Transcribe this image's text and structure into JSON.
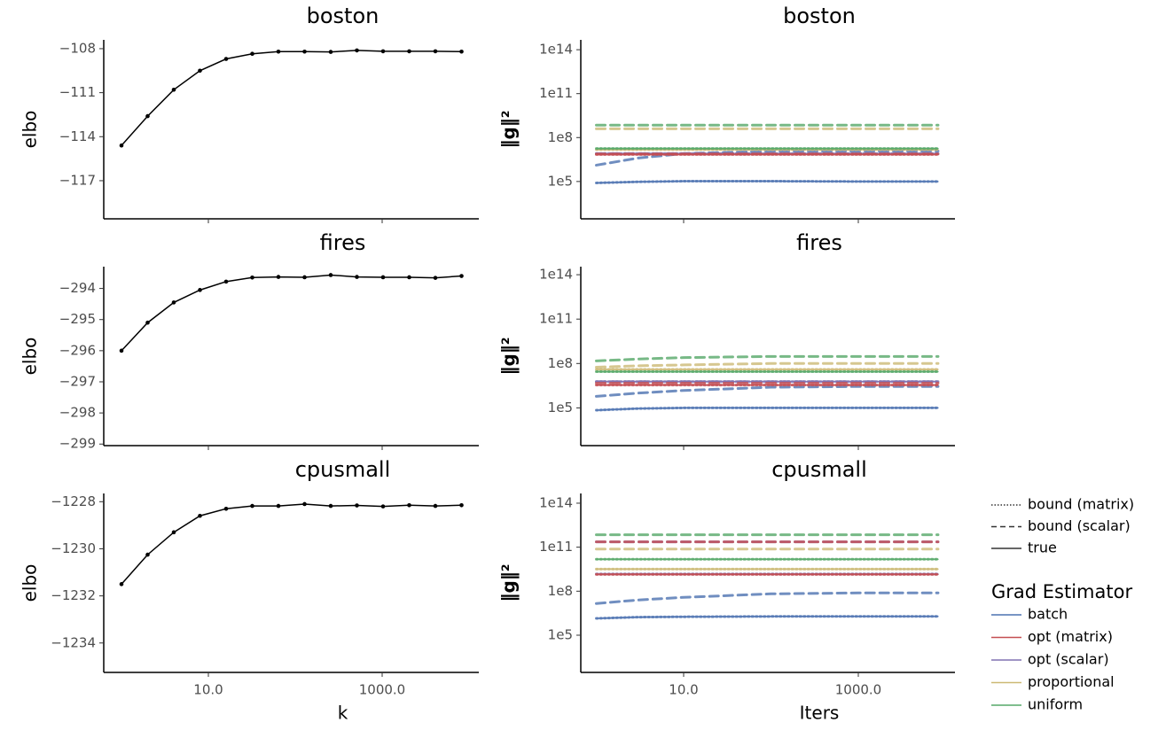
{
  "chart_data": [
    {
      "type": "line",
      "title": "boston",
      "ylabel": "elbo",
      "log_x": true,
      "xtick_labels": false,
      "xlim": [
        0.625,
        12950
      ],
      "xticks": [
        10,
        1000
      ],
      "ylim": [
        -119.6,
        -107.4
      ],
      "yticks": [
        {
          "value": -108,
          "label": "−108"
        },
        {
          "value": -111,
          "label": "−111"
        },
        {
          "value": -114,
          "label": "−114"
        },
        {
          "value": -117,
          "label": "−117"
        }
      ],
      "x": [
        1,
        2,
        4,
        8,
        16,
        32,
        64,
        128,
        256,
        512,
        1024,
        2048,
        4096,
        8192
      ],
      "series": [
        {
          "color": "#000000",
          "markers": true,
          "values": [
            -114.6,
            -112.6,
            -110.8,
            -109.5,
            -108.7,
            -108.35,
            -108.2,
            -108.2,
            -108.22,
            -108.12,
            -108.18,
            -108.18,
            -108.18,
            -108.2
          ]
        }
      ]
    },
    {
      "type": "line",
      "title": "boston",
      "ylabel": "‖g‖²",
      "log_x": true,
      "log_y": true,
      "xtick_labels": false,
      "xlim": [
        0.664,
        12790
      ],
      "xticks": [
        10,
        1000
      ],
      "ylim": [
        282,
        470000000000000.0
      ],
      "yticks": [
        {
          "value": 100000000000000.0,
          "label": "1e14"
        },
        {
          "value": 100000000000.0,
          "label": "1e11"
        },
        {
          "value": 100000000.0,
          "label": "1e8"
        },
        {
          "value": 100000.0,
          "label": "1e5"
        }
      ],
      "x": [
        1,
        3,
        10,
        100,
        1000,
        8192
      ],
      "series": [
        {
          "estimator": 0,
          "style": 0,
          "values": [
            80000.0,
            95000.0,
            105000.0,
            105000.0,
            100000.0,
            100000.0
          ]
        },
        {
          "estimator": 0,
          "style": 1,
          "values": [
            1300000.0,
            4000000.0,
            8000000.0,
            12000000.0,
            12000000.0,
            12000000.0
          ]
        },
        {
          "estimator": 0,
          "style": 2,
          "values": [
            80000.0,
            95000.0,
            105000.0,
            105000.0,
            100000.0,
            100000.0
          ]
        },
        {
          "estimator": 2,
          "style": 0,
          "values": [
            8000000.0,
            8000000.0,
            8000000.0,
            8000000.0,
            8000000.0,
            8000000.0
          ]
        },
        {
          "estimator": 2,
          "style": 1,
          "values": [
            8000000.0,
            8000000.0,
            8000000.0,
            8000000.0,
            8000000.0,
            8000000.0
          ]
        },
        {
          "estimator": 2,
          "style": 2,
          "values": [
            8000000.0,
            8000000.0,
            8000000.0,
            8000000.0,
            8000000.0,
            8000000.0
          ]
        },
        {
          "estimator": 1,
          "style": 0,
          "values": [
            7000000.0,
            7000000.0,
            7000000.0,
            7000000.0,
            7000000.0,
            7000000.0
          ]
        },
        {
          "estimator": 1,
          "style": 1,
          "values": [
            7500000.0,
            7500000.0,
            7500000.0,
            7500000.0,
            7500000.0,
            7500000.0
          ]
        },
        {
          "estimator": 1,
          "style": 2,
          "values": [
            7000000.0,
            7000000.0,
            7000000.0,
            7000000.0,
            7000000.0,
            7000000.0
          ]
        },
        {
          "estimator": 3,
          "style": 0,
          "values": [
            15000000.0,
            15000000.0,
            15000000.0,
            15000000.0,
            15000000.0,
            15000000.0
          ]
        },
        {
          "estimator": 3,
          "style": 1,
          "values": [
            400000000.0,
            400000000.0,
            400000000.0,
            400000000.0,
            400000000.0,
            400000000.0
          ]
        },
        {
          "estimator": 3,
          "style": 2,
          "values": [
            15000000.0,
            15000000.0,
            15000000.0,
            15000000.0,
            15000000.0,
            15000000.0
          ]
        },
        {
          "estimator": 4,
          "style": 0,
          "values": [
            18000000.0,
            18000000.0,
            18000000.0,
            18000000.0,
            18000000.0,
            18000000.0
          ]
        },
        {
          "estimator": 4,
          "style": 1,
          "values": [
            700000000.0,
            700000000.0,
            700000000.0,
            700000000.0,
            700000000.0,
            700000000.0
          ]
        },
        {
          "estimator": 4,
          "style": 2,
          "values": [
            18000000.0,
            18000000.0,
            18000000.0,
            18000000.0,
            18000000.0,
            18000000.0
          ]
        }
      ]
    },
    {
      "type": "line",
      "title": "fires",
      "ylabel": "elbo",
      "log_x": true,
      "xtick_labels": false,
      "xlim": [
        0.625,
        12950
      ],
      "xticks": [
        10,
        1000
      ],
      "ylim": [
        -299.05,
        -293.3
      ],
      "yticks": [
        {
          "value": -294,
          "label": "−294"
        },
        {
          "value": -295,
          "label": "−295"
        },
        {
          "value": -296,
          "label": "−296"
        },
        {
          "value": -297,
          "label": "−297"
        },
        {
          "value": -298,
          "label": "−298"
        },
        {
          "value": -299,
          "label": "−299"
        }
      ],
      "x": [
        1,
        2,
        4,
        8,
        16,
        32,
        64,
        128,
        256,
        512,
        1024,
        2048,
        4096,
        8192
      ],
      "series": [
        {
          "color": "#000000",
          "markers": true,
          "values": [
            -296.0,
            -295.1,
            -294.45,
            -294.05,
            -293.78,
            -293.65,
            -293.63,
            -293.64,
            -293.57,
            -293.63,
            -293.64,
            -293.64,
            -293.66,
            -293.6
          ]
        }
      ]
    },
    {
      "type": "line",
      "title": "fires",
      "ylabel": "‖g‖²",
      "log_x": true,
      "log_y": true,
      "xtick_labels": false,
      "xlim": [
        0.664,
        12790
      ],
      "xticks": [
        10,
        1000
      ],
      "ylim": [
        282,
        350000000000000.0
      ],
      "yticks": [
        {
          "value": 100000000000000.0,
          "label": "1e14"
        },
        {
          "value": 100000000000.0,
          "label": "1e11"
        },
        {
          "value": 100000000.0,
          "label": "1e8"
        },
        {
          "value": 100000.0,
          "label": "1e5"
        }
      ],
      "x": [
        1,
        3,
        10,
        100,
        1000,
        8192
      ],
      "series": [
        {
          "estimator": 0,
          "style": 0,
          "values": [
            70000.0,
            90000.0,
            100000.0,
            100000.0,
            100000.0,
            100000.0
          ]
        },
        {
          "estimator": 0,
          "style": 1,
          "values": [
            600000.0,
            1000000.0,
            1500000.0,
            2500000.0,
            2800000.0,
            2800000.0
          ]
        },
        {
          "estimator": 0,
          "style": 2,
          "values": [
            70000.0,
            90000.0,
            100000.0,
            100000.0,
            100000.0,
            100000.0
          ]
        },
        {
          "estimator": 2,
          "style": 0,
          "values": [
            6000000.0,
            6000000.0,
            6000000.0,
            6000000.0,
            6000000.0,
            6000000.0
          ]
        },
        {
          "estimator": 2,
          "style": 1,
          "values": [
            6000000.0,
            6000000.0,
            6000000.0,
            6000000.0,
            6000000.0,
            6000000.0
          ]
        },
        {
          "estimator": 2,
          "style": 2,
          "values": [
            6000000.0,
            6000000.0,
            6000000.0,
            6000000.0,
            6000000.0,
            6000000.0
          ]
        },
        {
          "estimator": 1,
          "style": 0,
          "values": [
            3500000.0,
            3500000.0,
            3500000.0,
            3500000.0,
            3500000.0,
            3500000.0
          ]
        },
        {
          "estimator": 1,
          "style": 1,
          "values": [
            4700000.0,
            4700000.0,
            4700000.0,
            4700000.0,
            4700000.0,
            4700000.0
          ]
        },
        {
          "estimator": 1,
          "style": 2,
          "values": [
            3500000.0,
            3500000.0,
            3500000.0,
            3500000.0,
            3500000.0,
            3500000.0
          ]
        },
        {
          "estimator": 3,
          "style": 0,
          "values": [
            40000000.0,
            40000000.0,
            40000000.0,
            40000000.0,
            40000000.0,
            40000000.0
          ]
        },
        {
          "estimator": 3,
          "style": 1,
          "values": [
            56000000.0,
            70000000.0,
            80000000.0,
            100000000.0,
            100000000.0,
            100000000.0
          ]
        },
        {
          "estimator": 3,
          "style": 2,
          "values": [
            40000000.0,
            40000000.0,
            40000000.0,
            40000000.0,
            40000000.0,
            40000000.0
          ]
        },
        {
          "estimator": 4,
          "style": 0,
          "values": [
            28000000.0,
            28000000.0,
            28000000.0,
            28000000.0,
            28000000.0,
            28000000.0
          ]
        },
        {
          "estimator": 4,
          "style": 1,
          "values": [
            150000000.0,
            200000000.0,
            250000000.0,
            300000000.0,
            300000000.0,
            300000000.0
          ]
        },
        {
          "estimator": 4,
          "style": 2,
          "values": [
            28000000.0,
            28000000.0,
            28000000.0,
            28000000.0,
            28000000.0,
            28000000.0
          ]
        }
      ]
    },
    {
      "type": "line",
      "title": "cpusmall",
      "ylabel": "elbo",
      "xlabel": "k",
      "log_x": true,
      "xlim": [
        0.625,
        12950
      ],
      "xticks": [
        {
          "value": 10,
          "label": "10.0"
        },
        {
          "value": 1000,
          "label": "1000.0"
        }
      ],
      "ylim": [
        -1235.25,
        -1227.65
      ],
      "yticks": [
        {
          "value": -1228,
          "label": "−1228"
        },
        {
          "value": -1230,
          "label": "−1230"
        },
        {
          "value": -1232,
          "label": "−1232"
        },
        {
          "value": -1234,
          "label": "−1234"
        }
      ],
      "x": [
        1,
        2,
        4,
        8,
        16,
        32,
        64,
        128,
        256,
        512,
        1024,
        2048,
        4096,
        8192
      ],
      "series": [
        {
          "color": "#000000",
          "markers": true,
          "values": [
            -1231.5,
            -1230.25,
            -1229.3,
            -1228.6,
            -1228.3,
            -1228.18,
            -1228.18,
            -1228.1,
            -1228.18,
            -1228.16,
            -1228.2,
            -1228.15,
            -1228.18,
            -1228.15
          ]
        }
      ]
    },
    {
      "type": "line",
      "title": "cpusmall",
      "ylabel": "‖g‖²",
      "xlabel": "Iters",
      "log_x": true,
      "log_y": true,
      "xlim": [
        0.664,
        12790
      ],
      "xticks": [
        {
          "value": 10,
          "label": "10.0"
        },
        {
          "value": 1000,
          "label": "1000.0"
        }
      ],
      "ylim": [
        290,
        460000000000000.0
      ],
      "yticks": [
        {
          "value": 100000000000000.0,
          "label": "1e14"
        },
        {
          "value": 100000000000.0,
          "label": "1e11"
        },
        {
          "value": 100000000.0,
          "label": "1e8"
        },
        {
          "value": 100000.0,
          "label": "1e5"
        }
      ],
      "x": [
        1,
        3,
        10,
        100,
        1000,
        8192
      ],
      "series": [
        {
          "estimator": 0,
          "style": 0,
          "values": [
            1400000.0,
            1700000.0,
            1800000.0,
            1900000.0,
            1900000.0,
            1900000.0
          ]
        },
        {
          "estimator": 0,
          "style": 1,
          "values": [
            14500000.0,
            25000000.0,
            38000000.0,
            66000000.0,
            76000000.0,
            76000000.0
          ]
        },
        {
          "estimator": 0,
          "style": 2,
          "values": [
            1400000.0,
            1700000.0,
            1800000.0,
            1900000.0,
            1900000.0,
            1900000.0
          ]
        },
        {
          "estimator": 2,
          "style": 0,
          "values": [
            1500000000.0,
            1500000000.0,
            1500000000.0,
            1500000000.0,
            1500000000.0,
            1500000000.0
          ]
        },
        {
          "estimator": 2,
          "style": 1,
          "values": [
            230000000000.0,
            230000000000.0,
            230000000000.0,
            230000000000.0,
            230000000000.0,
            230000000000.0
          ]
        },
        {
          "estimator": 2,
          "style": 2,
          "values": [
            1500000000.0,
            1500000000.0,
            1500000000.0,
            1500000000.0,
            1500000000.0,
            1500000000.0
          ]
        },
        {
          "estimator": 1,
          "style": 0,
          "values": [
            1400000000.0,
            1400000000.0,
            1400000000.0,
            1400000000.0,
            1400000000.0,
            1400000000.0
          ]
        },
        {
          "estimator": 1,
          "style": 1,
          "values": [
            230000000000.0,
            230000000000.0,
            230000000000.0,
            230000000000.0,
            230000000000.0,
            230000000000.0
          ]
        },
        {
          "estimator": 1,
          "style": 2,
          "values": [
            1400000000.0,
            1400000000.0,
            1400000000.0,
            1400000000.0,
            1400000000.0,
            1400000000.0
          ]
        },
        {
          "estimator": 3,
          "style": 0,
          "values": [
            3200000000.0,
            3200000000.0,
            3200000000.0,
            3200000000.0,
            3200000000.0,
            3200000000.0
          ]
        },
        {
          "estimator": 3,
          "style": 1,
          "values": [
            75000000000.0,
            75000000000.0,
            75000000000.0,
            75000000000.0,
            75000000000.0,
            75000000000.0
          ]
        },
        {
          "estimator": 3,
          "style": 2,
          "values": [
            3200000000.0,
            3200000000.0,
            3200000000.0,
            3200000000.0,
            3200000000.0,
            3200000000.0
          ]
        },
        {
          "estimator": 4,
          "style": 0,
          "values": [
            15000000000.0,
            15000000000.0,
            15000000000.0,
            15000000000.0,
            15000000000.0,
            15000000000.0
          ]
        },
        {
          "estimator": 4,
          "style": 1,
          "values": [
            700000000000.0,
            700000000000.0,
            700000000000.0,
            700000000000.0,
            700000000000.0,
            700000000000.0
          ]
        },
        {
          "estimator": 4,
          "style": 2,
          "values": [
            15000000000.0,
            15000000000.0,
            15000000000.0,
            15000000000.0,
            15000000000.0,
            15000000000.0
          ]
        }
      ]
    }
  ],
  "legend": {
    "styles": [
      {
        "name": "bound (matrix)",
        "dash": "dotted"
      },
      {
        "name": "bound (scalar)",
        "dash": "dashed"
      },
      {
        "name": "true",
        "dash": "solid"
      }
    ],
    "title": "Grad Estimator",
    "estimators": [
      {
        "name": "batch",
        "color": "#4c72b0"
      },
      {
        "name": "opt (matrix)",
        "color": "#c44e52"
      },
      {
        "name": "opt (scalar)",
        "color": "#8172b2"
      },
      {
        "name": "proportional",
        "color": "#ccb974"
      },
      {
        "name": "uniform",
        "color": "#55a868"
      }
    ]
  }
}
